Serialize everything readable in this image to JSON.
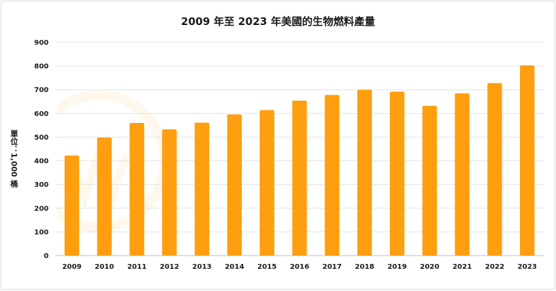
{
  "chart_data": {
    "type": "bar",
    "title": "2009 年至 2023 年美國的生物燃料產量",
    "ylabel": "單位：1,000 桶",
    "xlabel": "",
    "categories": [
      "2009",
      "2010",
      "2011",
      "2012",
      "2013",
      "2014",
      "2015",
      "2016",
      "2017",
      "2018",
      "2019",
      "2020",
      "2021",
      "2022",
      "2023"
    ],
    "values": [
      422,
      498,
      560,
      533,
      561,
      596,
      614,
      654,
      678,
      700,
      692,
      632,
      685,
      728,
      803
    ],
    "ylim": [
      0,
      900
    ],
    "yticks": [
      0,
      100,
      200,
      300,
      400,
      500,
      600,
      700,
      800,
      900
    ],
    "grid": true,
    "bar_color": "#FF9E0F",
    "watermark": "優分析"
  }
}
